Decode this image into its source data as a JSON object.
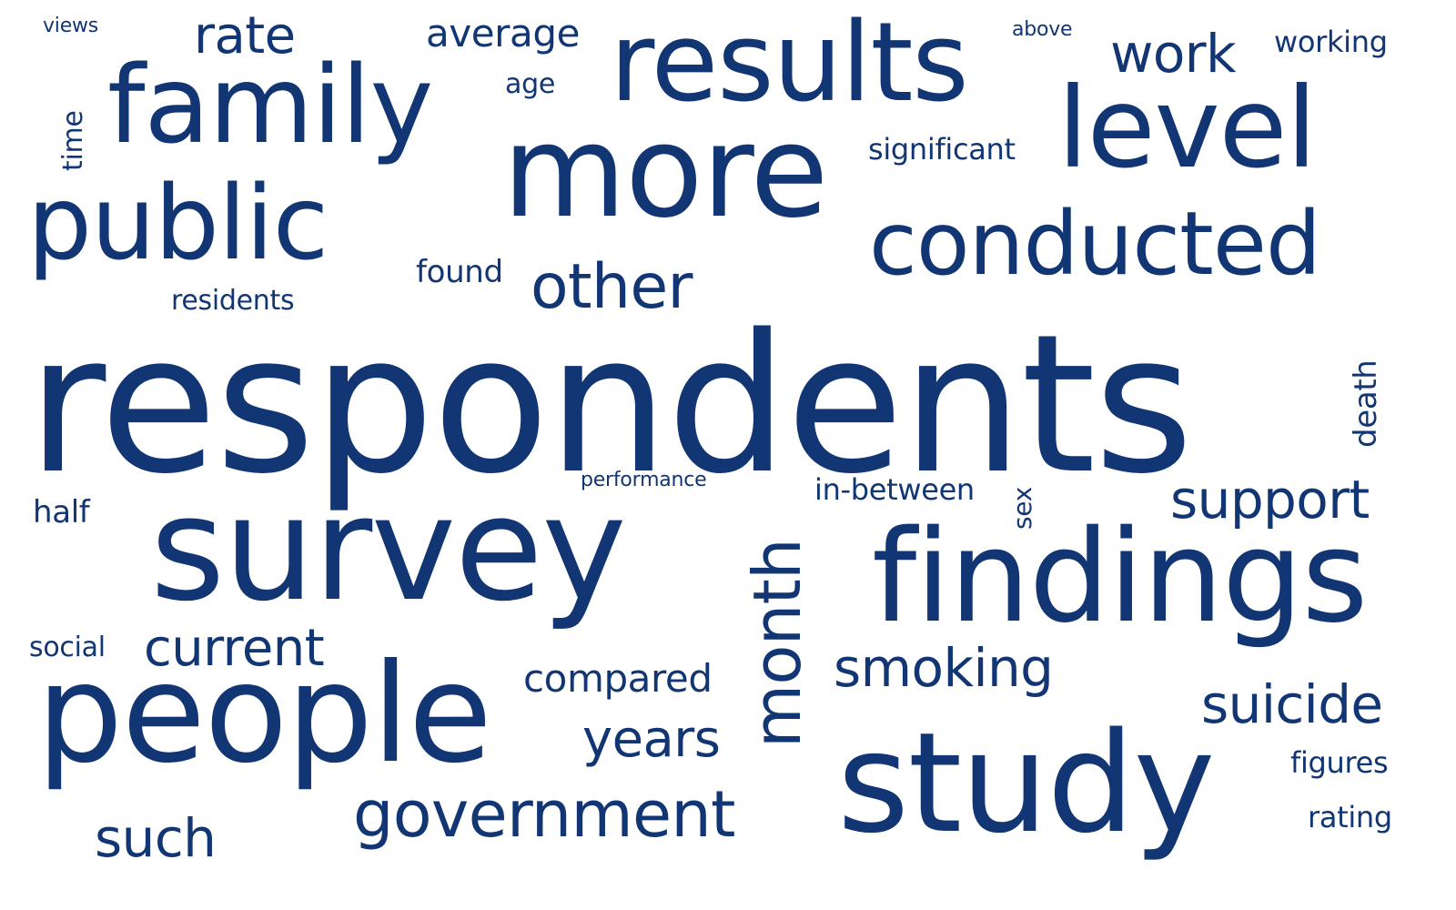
{
  "word_cloud": {
    "color": "#123673",
    "words": {
      "respondents": "respondents",
      "survey": "survey",
      "study": "study",
      "people": "people",
      "findings": "findings",
      "more": "more",
      "results": "results",
      "family": "family",
      "level": "level",
      "public": "public",
      "conducted": "conducted",
      "government": "government",
      "month": "month",
      "other": "other",
      "support": "support",
      "suicide": "suicide",
      "smoking": "smoking",
      "current": "current",
      "years": "years",
      "such": "such",
      "rate": "rate",
      "work": "work",
      "compared": "compared",
      "average": "average",
      "significant": "significant",
      "in_between": "in-between",
      "residents": "residents",
      "found": "found",
      "working": "working",
      "figures": "figures",
      "rating": "rating",
      "social": "social",
      "half": "half",
      "age": "age",
      "time": "time",
      "death": "death",
      "sex": "sex",
      "views": "views",
      "above": "above",
      "performance": "performance"
    }
  }
}
